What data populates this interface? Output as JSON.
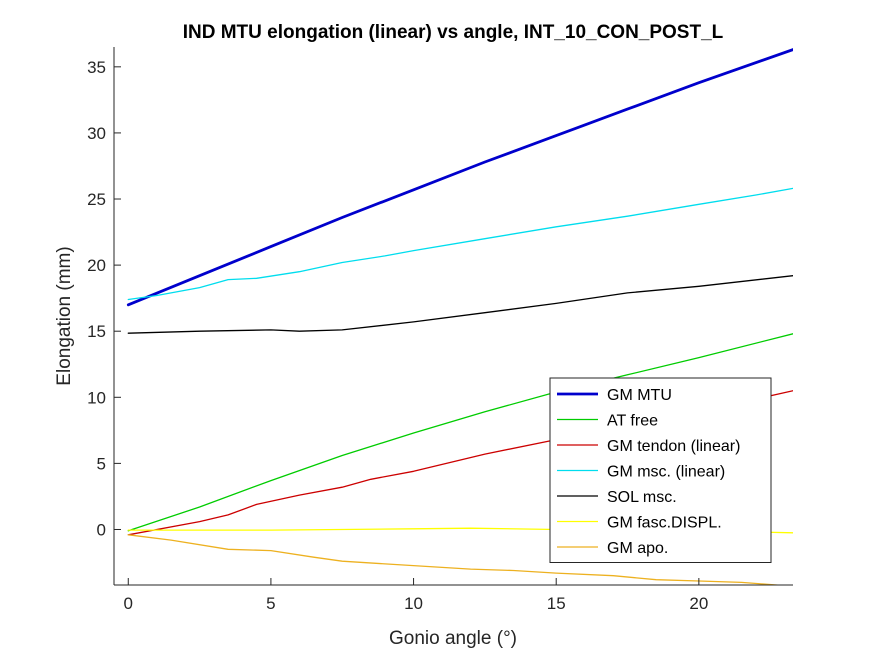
{
  "chart_data": {
    "type": "line",
    "title": "IND MTU elongation (linear) vs angle, INT_10_CON_POST_L",
    "xlabel": "Gonio angle (°)",
    "ylabel": "Elongation (mm)",
    "xlim": [
      -0.5,
      23.3
    ],
    "ylim": [
      -4.2,
      36.5
    ],
    "xticks": [
      0,
      5,
      10,
      15,
      20
    ],
    "yticks": [
      0,
      5,
      10,
      15,
      20,
      25,
      30,
      35
    ],
    "grid": false,
    "legend_position": "bottom-right",
    "series": [
      {
        "name": "GM MTU",
        "color": "#0000CC",
        "width": 2.8,
        "x": [
          0,
          2.5,
          5,
          7.5,
          10,
          12.5,
          15,
          17.5,
          20,
          23.3
        ],
        "y": [
          17.0,
          19.2,
          21.4,
          23.6,
          25.7,
          27.8,
          29.8,
          31.8,
          33.8,
          36.3
        ]
      },
      {
        "name": "AT free",
        "color": "#00CC00",
        "width": 1.3,
        "x": [
          0,
          2.5,
          5,
          7.5,
          10,
          12.5,
          15,
          17.5,
          20,
          23.3
        ],
        "y": [
          -0.1,
          1.7,
          3.7,
          5.6,
          7.3,
          8.9,
          10.4,
          11.7,
          13.0,
          14.8
        ]
      },
      {
        "name": "GM tendon (linear)",
        "color": "#CC0000",
        "width": 1.3,
        "x": [
          0,
          2.5,
          3.5,
          4.5,
          6,
          7.5,
          8.5,
          10,
          12.5,
          15,
          17.5,
          20,
          23.3
        ],
        "y": [
          -0.4,
          0.6,
          1.1,
          1.9,
          2.6,
          3.2,
          3.8,
          4.4,
          5.7,
          6.8,
          7.9,
          8.9,
          10.5
        ]
      },
      {
        "name": "GM msc. (linear)",
        "color": "#00DDEE",
        "width": 1.3,
        "x": [
          0,
          1,
          2.5,
          3.5,
          4.5,
          6,
          7.5,
          9,
          10,
          12.5,
          15,
          17.5,
          20,
          22,
          23.3
        ],
        "y": [
          17.4,
          17.7,
          18.3,
          18.9,
          19.0,
          19.5,
          20.2,
          20.7,
          21.1,
          22.0,
          22.9,
          23.7,
          24.6,
          25.3,
          25.8
        ]
      },
      {
        "name": "SOL msc.",
        "color": "#000000",
        "width": 1.3,
        "x": [
          0,
          2.5,
          5,
          6,
          7.5,
          10,
          12.5,
          15,
          17.5,
          20,
          23.3
        ],
        "y": [
          14.85,
          15.0,
          15.1,
          15.0,
          15.1,
          15.7,
          16.4,
          17.1,
          17.9,
          18.4,
          19.2
        ]
      },
      {
        "name": "GM fasc.DISPL.",
        "color": "#FFFF00",
        "width": 1.3,
        "x": [
          0,
          5,
          10,
          12,
          15,
          20,
          23.3
        ],
        "y": [
          -0.05,
          -0.05,
          0.05,
          0.1,
          0.0,
          -0.1,
          -0.25
        ]
      },
      {
        "name": "GM apo.",
        "color": "#EDB120",
        "width": 1.3,
        "x": [
          0,
          1.5,
          3.5,
          5,
          6.5,
          7.5,
          9,
          10.5,
          12,
          13.5,
          15,
          17,
          18.5,
          20,
          21.5,
          23.3
        ],
        "y": [
          -0.4,
          -0.8,
          -1.5,
          -1.6,
          -2.1,
          -2.4,
          -2.6,
          -2.8,
          -3.0,
          -3.1,
          -3.3,
          -3.5,
          -3.8,
          -3.9,
          -4.0,
          -4.3
        ]
      }
    ]
  }
}
